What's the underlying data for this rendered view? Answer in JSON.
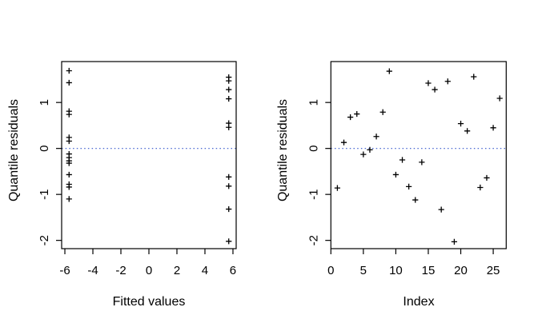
{
  "figure": {
    "background": "#ffffff",
    "axis_color": "#000000",
    "point_color": "#000000",
    "refline_color": "#3355cc"
  },
  "chart_data": [
    {
      "type": "scatter",
      "marker": "+",
      "title": "",
      "xlabel": "Fitted values",
      "ylabel": "Quantile residuals",
      "xlim": [
        -6.23,
        6.23
      ],
      "ylim": [
        -2.18,
        1.89
      ],
      "xticks": [
        -6,
        -4,
        -2,
        0,
        2,
        4,
        6
      ],
      "yticks": [
        -2,
        -1,
        0,
        1
      ],
      "refline_y": 0,
      "grid": false,
      "legend": null,
      "points": [
        {
          "x": -5.7,
          "y": 1.69
        },
        {
          "x": -5.7,
          "y": 1.43
        },
        {
          "x": -5.7,
          "y": 0.81
        },
        {
          "x": -5.7,
          "y": 0.74
        },
        {
          "x": -5.7,
          "y": 0.24
        },
        {
          "x": -5.7,
          "y": 0.16
        },
        {
          "x": -5.7,
          "y": -0.12
        },
        {
          "x": -5.7,
          "y": -0.2
        },
        {
          "x": -5.7,
          "y": -0.27
        },
        {
          "x": -5.7,
          "y": -0.32
        },
        {
          "x": -5.7,
          "y": -0.57
        },
        {
          "x": -5.7,
          "y": -0.78
        },
        {
          "x": -5.7,
          "y": -0.84
        },
        {
          "x": -5.7,
          "y": -1.1
        },
        {
          "x": 5.7,
          "y": 1.55
        },
        {
          "x": 5.7,
          "y": 1.47
        },
        {
          "x": 5.7,
          "y": 1.28
        },
        {
          "x": 5.7,
          "y": 1.08
        },
        {
          "x": 5.7,
          "y": 0.55
        },
        {
          "x": 5.7,
          "y": 0.46
        },
        {
          "x": 5.7,
          "y": -0.62
        },
        {
          "x": 5.7,
          "y": -0.82
        },
        {
          "x": 5.7,
          "y": -1.32
        },
        {
          "x": 5.7,
          "y": -2.02
        }
      ]
    },
    {
      "type": "scatter",
      "marker": "+",
      "title": "",
      "xlabel": "Index",
      "ylabel": "Quantile residuals",
      "xlim": [
        0,
        27
      ],
      "ylim": [
        -2.18,
        1.89
      ],
      "xticks": [
        0,
        5,
        10,
        15,
        20,
        25
      ],
      "yticks": [
        -2,
        -1,
        0,
        1
      ],
      "refline_y": 0,
      "grid": false,
      "legend": null,
      "points": [
        {
          "x": 1,
          "y": -0.86
        },
        {
          "x": 2,
          "y": 0.13
        },
        {
          "x": 3,
          "y": 0.68
        },
        {
          "x": 4,
          "y": 0.75
        },
        {
          "x": 5,
          "y": -0.13
        },
        {
          "x": 6,
          "y": -0.03
        },
        {
          "x": 7,
          "y": 0.26
        },
        {
          "x": 8,
          "y": 0.79
        },
        {
          "x": 9,
          "y": 1.68
        },
        {
          "x": 10,
          "y": -0.57
        },
        {
          "x": 11,
          "y": -0.25
        },
        {
          "x": 12,
          "y": -0.83
        },
        {
          "x": 13,
          "y": -1.12
        },
        {
          "x": 14,
          "y": -0.3
        },
        {
          "x": 15,
          "y": 1.42
        },
        {
          "x": 16,
          "y": 1.28
        },
        {
          "x": 17,
          "y": -1.33
        },
        {
          "x": 18,
          "y": 1.46
        },
        {
          "x": 19,
          "y": -2.03
        },
        {
          "x": 20,
          "y": 0.54
        },
        {
          "x": 21,
          "y": 0.38
        },
        {
          "x": 22,
          "y": 1.56
        },
        {
          "x": 23,
          "y": -0.85
        },
        {
          "x": 24,
          "y": -0.64
        },
        {
          "x": 25,
          "y": 0.45
        },
        {
          "x": 26,
          "y": 1.09
        }
      ]
    }
  ]
}
